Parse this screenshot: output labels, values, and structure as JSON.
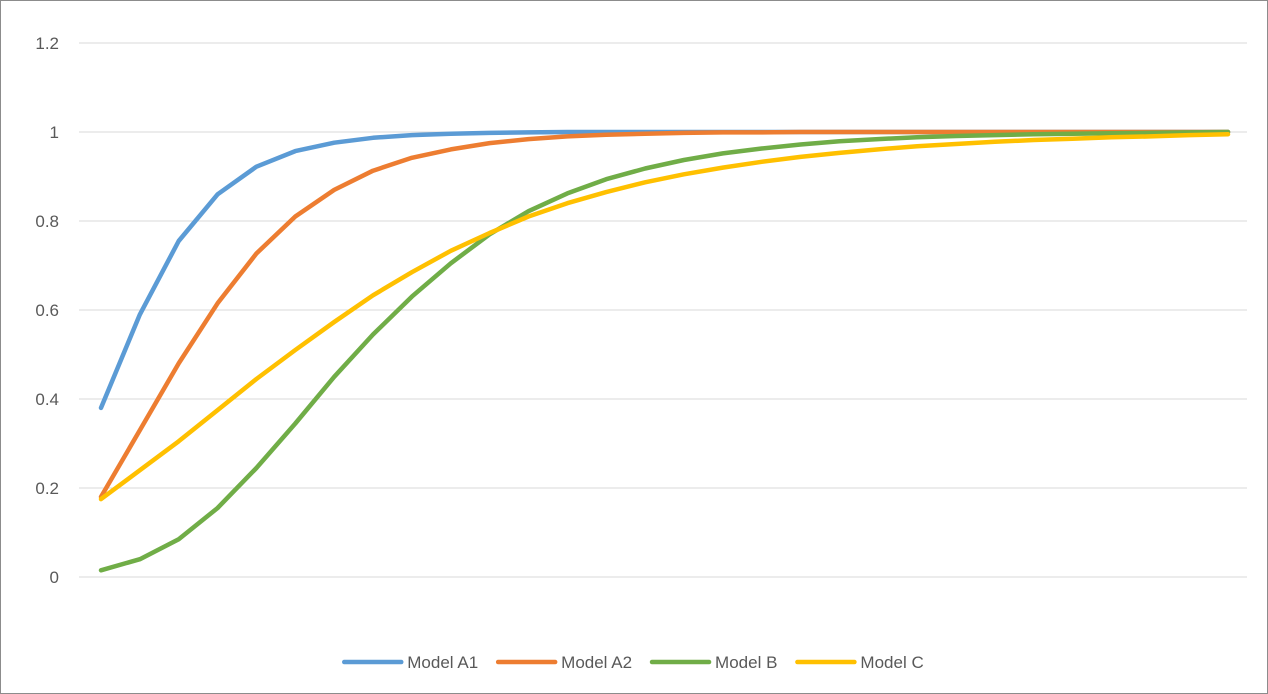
{
  "chart_data": {
    "type": "line",
    "title": "",
    "xlabel": "",
    "ylabel": "",
    "ylim": [
      0,
      1.2
    ],
    "yticks": [
      "0",
      "0.2",
      "0.4",
      "0.6",
      "0.8",
      "1",
      "1.2"
    ],
    "grid": true,
    "legend_position": "bottom",
    "x": [
      1,
      2,
      3,
      4,
      5,
      6,
      7,
      8,
      9,
      10,
      11,
      12,
      13,
      14,
      15,
      16,
      17,
      18,
      19,
      20,
      21,
      22,
      23,
      24,
      25,
      26,
      27,
      28,
      29,
      30
    ],
    "series": [
      {
        "name": "Model A1",
        "color": "#5b9bd5",
        "values": [
          0.38,
          0.59,
          0.755,
          0.86,
          0.922,
          0.957,
          0.976,
          0.987,
          0.993,
          0.996,
          0.998,
          0.999,
          1.0,
          1.0,
          1.0,
          1.0,
          1.0,
          1.0,
          1.0,
          1.0,
          1.0,
          1.0,
          1.0,
          1.0,
          1.0,
          1.0,
          1.0,
          1.0,
          1.0,
          1.0
        ]
      },
      {
        "name": "Model A2",
        "color": "#ed7d31",
        "values": [
          0.18,
          0.33,
          0.48,
          0.615,
          0.727,
          0.81,
          0.87,
          0.913,
          0.942,
          0.961,
          0.975,
          0.984,
          0.99,
          0.994,
          0.996,
          0.998,
          0.999,
          0.999,
          1.0,
          1.0,
          1.0,
          1.0,
          1.0,
          1.0,
          1.0,
          1.0,
          1.0,
          1.0,
          1.0,
          1.0
        ]
      },
      {
        "name": "Model B",
        "color": "#70ad47",
        "values": [
          0.015,
          0.04,
          0.085,
          0.155,
          0.245,
          0.345,
          0.45,
          0.545,
          0.63,
          0.705,
          0.77,
          0.822,
          0.862,
          0.894,
          0.918,
          0.937,
          0.952,
          0.963,
          0.972,
          0.979,
          0.984,
          0.988,
          0.991,
          0.993,
          0.995,
          0.996,
          0.997,
          0.998,
          0.999,
          1.0
        ]
      },
      {
        "name": "Model C",
        "color": "#ffc000",
        "values": [
          0.175,
          0.24,
          0.305,
          0.375,
          0.445,
          0.51,
          0.573,
          0.633,
          0.685,
          0.733,
          0.773,
          0.81,
          0.84,
          0.865,
          0.887,
          0.905,
          0.92,
          0.933,
          0.944,
          0.953,
          0.961,
          0.968,
          0.973,
          0.978,
          0.982,
          0.985,
          0.988,
          0.99,
          0.993,
          0.995
        ]
      }
    ]
  }
}
